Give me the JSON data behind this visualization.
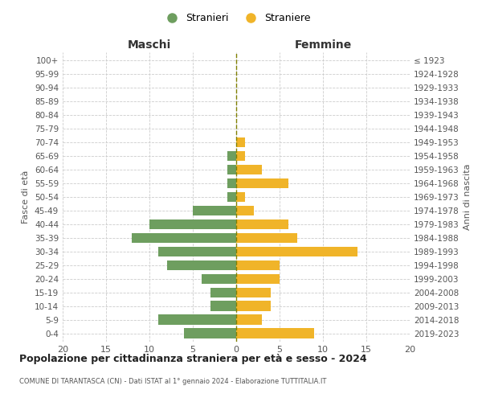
{
  "age_groups": [
    "0-4",
    "5-9",
    "10-14",
    "15-19",
    "20-24",
    "25-29",
    "30-34",
    "35-39",
    "40-44",
    "45-49",
    "50-54",
    "55-59",
    "60-64",
    "65-69",
    "70-74",
    "75-79",
    "80-84",
    "85-89",
    "90-94",
    "95-99",
    "100+"
  ],
  "birth_years": [
    "2019-2023",
    "2014-2018",
    "2009-2013",
    "2004-2008",
    "1999-2003",
    "1994-1998",
    "1989-1993",
    "1984-1988",
    "1979-1983",
    "1974-1978",
    "1969-1973",
    "1964-1968",
    "1959-1963",
    "1954-1958",
    "1949-1953",
    "1944-1948",
    "1939-1943",
    "1934-1938",
    "1929-1933",
    "1924-1928",
    "≤ 1923"
  ],
  "maschi": [
    6,
    9,
    3,
    3,
    4,
    8,
    9,
    12,
    10,
    5,
    1,
    1,
    1,
    1,
    0,
    0,
    0,
    0,
    0,
    0,
    0
  ],
  "femmine": [
    9,
    3,
    4,
    4,
    5,
    5,
    14,
    7,
    6,
    2,
    1,
    6,
    3,
    1,
    1,
    0,
    0,
    0,
    0,
    0,
    0
  ],
  "maschi_color": "#6e9e5f",
  "femmine_color": "#f0b429",
  "title": "Popolazione per cittadinanza straniera per età e sesso - 2024",
  "subtitle": "COMUNE DI TARANTASCA (CN) - Dati ISTAT al 1° gennaio 2024 - Elaborazione TUTTITALIA.IT",
  "xlabel_left": "Maschi",
  "xlabel_right": "Femmine",
  "ylabel_left": "Fasce di età",
  "ylabel_right": "Anni di nascita",
  "legend_maschi": "Stranieri",
  "legend_femmine": "Straniere",
  "xlim": 20,
  "background_color": "#ffffff",
  "grid_color": "#cccccc",
  "bar_height": 0.75
}
